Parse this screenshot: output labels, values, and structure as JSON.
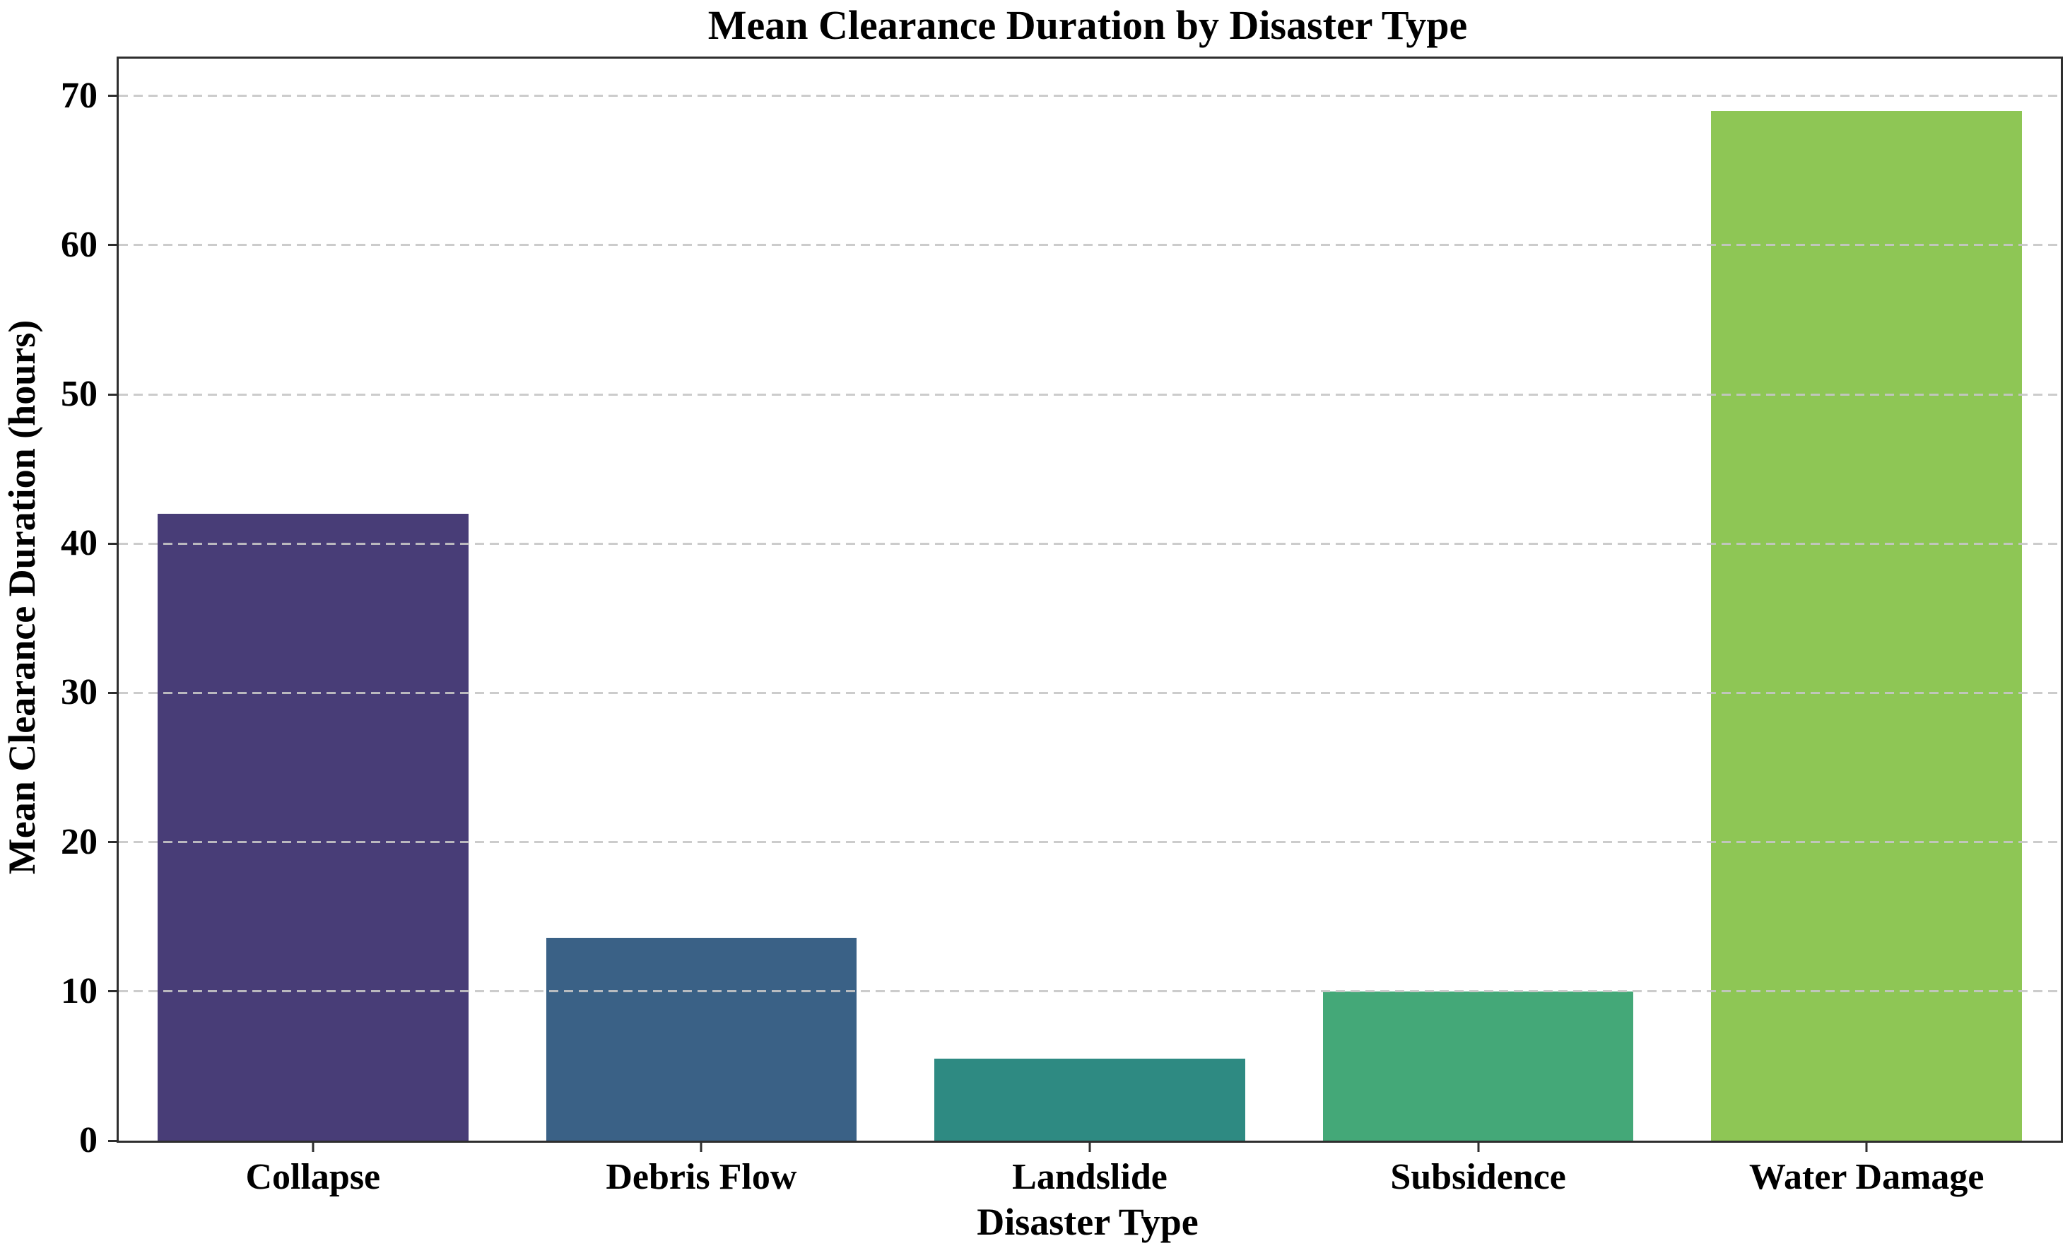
{
  "chart_data": {
    "type": "bar",
    "title": "Mean Clearance Duration by Disaster Type",
    "xlabel": "Disaster Type",
    "ylabel": "Mean Clearance Duration (hours)",
    "categories": [
      "Collapse",
      "Debris Flow",
      "Landslide",
      "Subsidence",
      "Water Damage"
    ],
    "values": [
      42,
      13.6,
      5.5,
      10,
      69
    ],
    "bar_colors": [
      "#483d77",
      "#3a6186",
      "#2e8a82",
      "#44a878",
      "#8ec655"
    ],
    "yticks": [
      0,
      10,
      20,
      30,
      40,
      50,
      60,
      70
    ],
    "ylim": [
      0,
      72.5
    ],
    "grid": "horizontal dashed gridlines drawn over bars",
    "grid_color": "#c6c6c6",
    "axis_color": "#2e2e2e",
    "legend_position": "none"
  }
}
